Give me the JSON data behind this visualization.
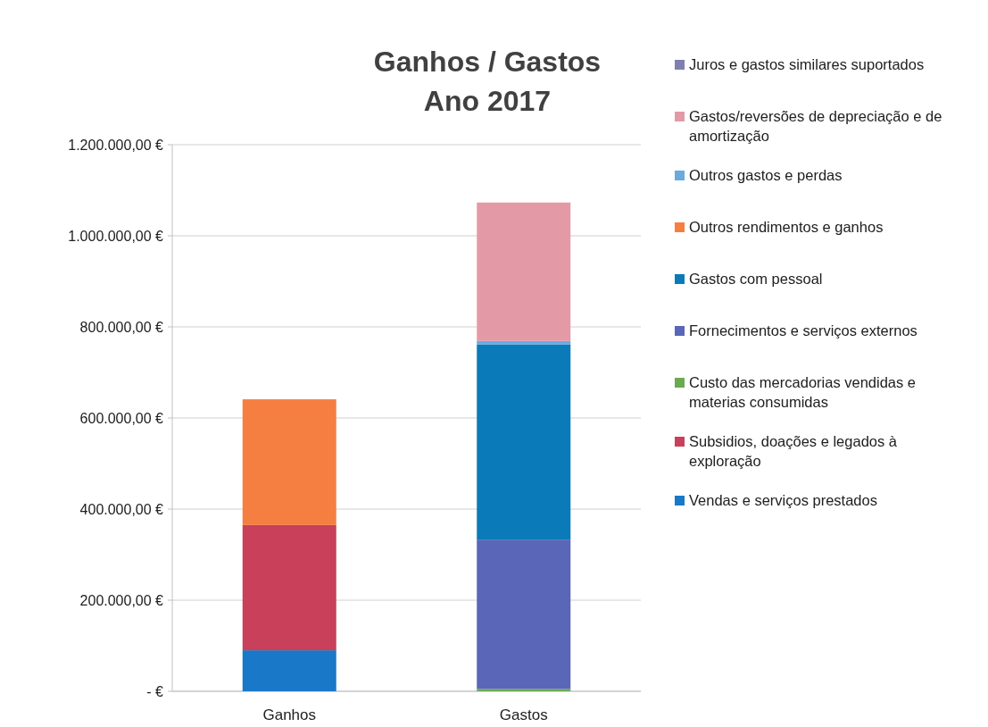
{
  "chart_data": {
    "type": "bar",
    "title": "Ganhos / Gastos\nAno 2017",
    "stacked": true,
    "categories": [
      "Ganhos",
      "Gastos"
    ],
    "series": [
      {
        "name": "Vendas e serviços prestados",
        "color": "#1a78c8",
        "values": [
          90000,
          null
        ]
      },
      {
        "name": "Subsidios, doações e legados à exploração",
        "color": "#c8405a",
        "values": [
          275000,
          null
        ]
      },
      {
        "name": "Custo das mercadorias vendidas e materias consumidas",
        "color": "#6aaa50",
        "values": [
          null,
          5000
        ]
      },
      {
        "name": "Fornecimentos e serviços externos",
        "color": "#5a66b8",
        "values": [
          null,
          328000
        ]
      },
      {
        "name": "Gastos com pessoal",
        "color": "#0a7ab8",
        "values": [
          null,
          428000
        ]
      },
      {
        "name": "Outros rendimentos e ganhos",
        "color": "#f57f40",
        "values": [
          276000,
          null
        ]
      },
      {
        "name": "Outros gastos e perdas",
        "color": "#6aaae0",
        "values": [
          null,
          8000
        ]
      },
      {
        "name": "Gastos/reversões de depreciação e de amortização",
        "color": "#e49aa6",
        "values": [
          null,
          304000
        ]
      },
      {
        "name": "Juros e gastos similares suportados",
        "color": "#8080b0",
        "values": [
          null,
          0
        ]
      }
    ],
    "ylim": [
      0,
      1200000
    ],
    "yticks": [
      {
        "value": 0,
        "label": "-   €"
      },
      {
        "value": 200000,
        "label": "200.000,00 €"
      },
      {
        "value": 400000,
        "label": "400.000,00 €"
      },
      {
        "value": 600000,
        "label": "600.000,00 €"
      },
      {
        "value": 800000,
        "label": "800.000,00 €"
      },
      {
        "value": 1000000,
        "label": "1.000.000,00 €"
      },
      {
        "value": 1200000,
        "label": "1.200.000,00 €"
      }
    ],
    "grid": "y",
    "legend": "right"
  }
}
